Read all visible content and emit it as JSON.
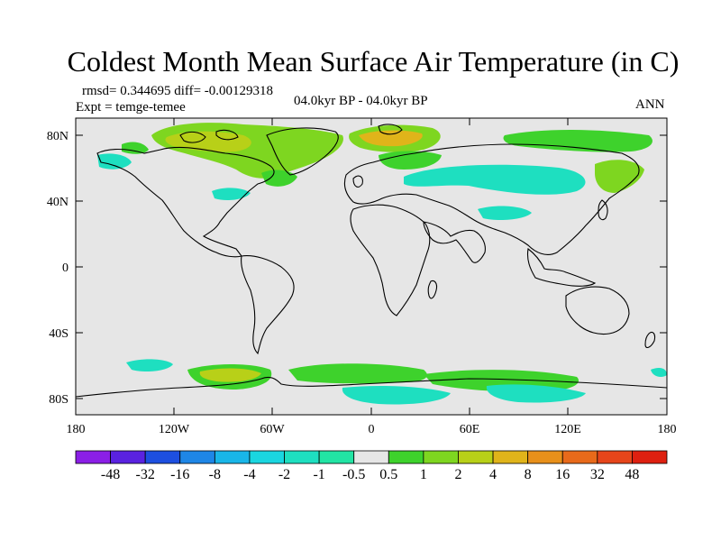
{
  "title": "Coldest Month Mean Surface Air Temperature (in C)",
  "stats": "rmsd= 0.344695  diff= -0.00129318",
  "experiment": "Expt = temge-temee",
  "period": "04.0kyr BP - 04.0kyr BP",
  "season": "ANN",
  "axes": {
    "lat_labels": [
      "80N",
      "40N",
      "0",
      "40S",
      "80S"
    ],
    "lon_labels": [
      "180",
      "120W",
      "60W",
      "0",
      "60E",
      "120E",
      "180"
    ]
  },
  "colorbar": {
    "labels": [
      "-48",
      "-32",
      "-16",
      "-8",
      "-4",
      "-2",
      "-1",
      "-0.5",
      "0.5",
      "1",
      "2",
      "4",
      "8",
      "16",
      "32",
      "48"
    ],
    "colors": [
      "#8b1fe6",
      "#5a22e0",
      "#1d4fe0",
      "#1e86e6",
      "#19b6e8",
      "#1ad6e0",
      "#1edfc0",
      "#22e4a4",
      "#e6e6e6",
      "#3ed22c",
      "#7ed620",
      "#b8d018",
      "#e0b41a",
      "#e8901a",
      "#e86a1a",
      "#e6451a",
      "#de2010"
    ]
  },
  "colors": {
    "background": "#e6e6e6",
    "coast": "#000000"
  }
}
